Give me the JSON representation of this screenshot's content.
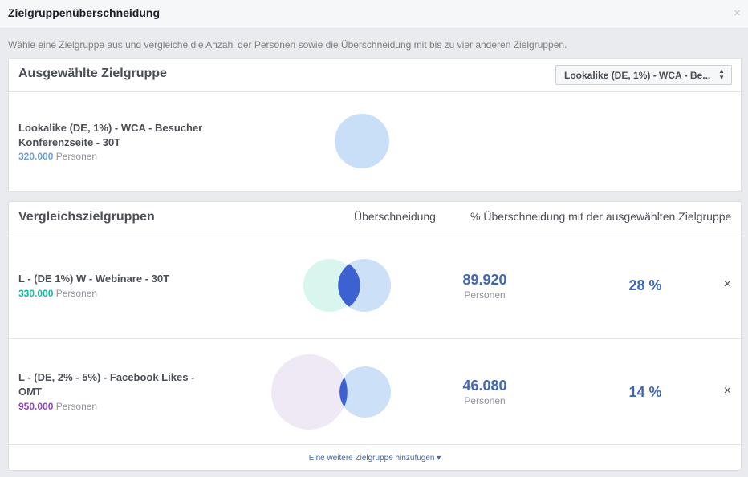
{
  "dialog": {
    "title": "Zielgruppenüberschneidung",
    "close_glyph": "×",
    "intro": "Wähle eine Zielgruppe aus und vergleiche die Anzahl der Personen sowie die Überschneidung mit bis zu vier anderen Zielgruppen."
  },
  "selected": {
    "heading": "Ausgewählte Zielgruppe",
    "dropdown_value": "Lookalike (DE, 1%) - WCA - Be...",
    "audience_name_line1": "Lookalike (DE, 1%) - WCA - Besucher",
    "audience_name_line2": "Konferenzseite - 30T",
    "size": "320.000",
    "size_unit": "Personen",
    "color": "#c9dff8"
  },
  "comparison": {
    "heading": "Vergleichszielgruppen",
    "col_overlap": "Überschneidung",
    "col_percent": "% Überschneidung mit der ausgewählten Zielgruppe",
    "rows": [
      {
        "name_line1": "L - (DE 1%) W - Webinare - 30T",
        "name_line2": "",
        "size": "330.000",
        "size_unit": "Personen",
        "size_color": "#16b8a5",
        "circle_color": "#d8f5ee",
        "overlap": "89.920",
        "overlap_unit": "Personen",
        "percent": "28 %",
        "remove_glyph": "×"
      },
      {
        "name_line1": "L - (DE, 2% - 5%) - Facebook Likes -",
        "name_line2": "OMT",
        "size": "950.000",
        "size_unit": "Personen",
        "size_color": "#8e44c2",
        "circle_color": "#efe8f5",
        "overlap": "46.080",
        "overlap_unit": "Personen",
        "percent": "14 %",
        "remove_glyph": "×"
      }
    ],
    "add_more": "Eine weitere Zielgruppe hinzufügen ▾"
  },
  "colors": {
    "accent": "#4267b2",
    "overlap_fill": "#3b62d0"
  }
}
